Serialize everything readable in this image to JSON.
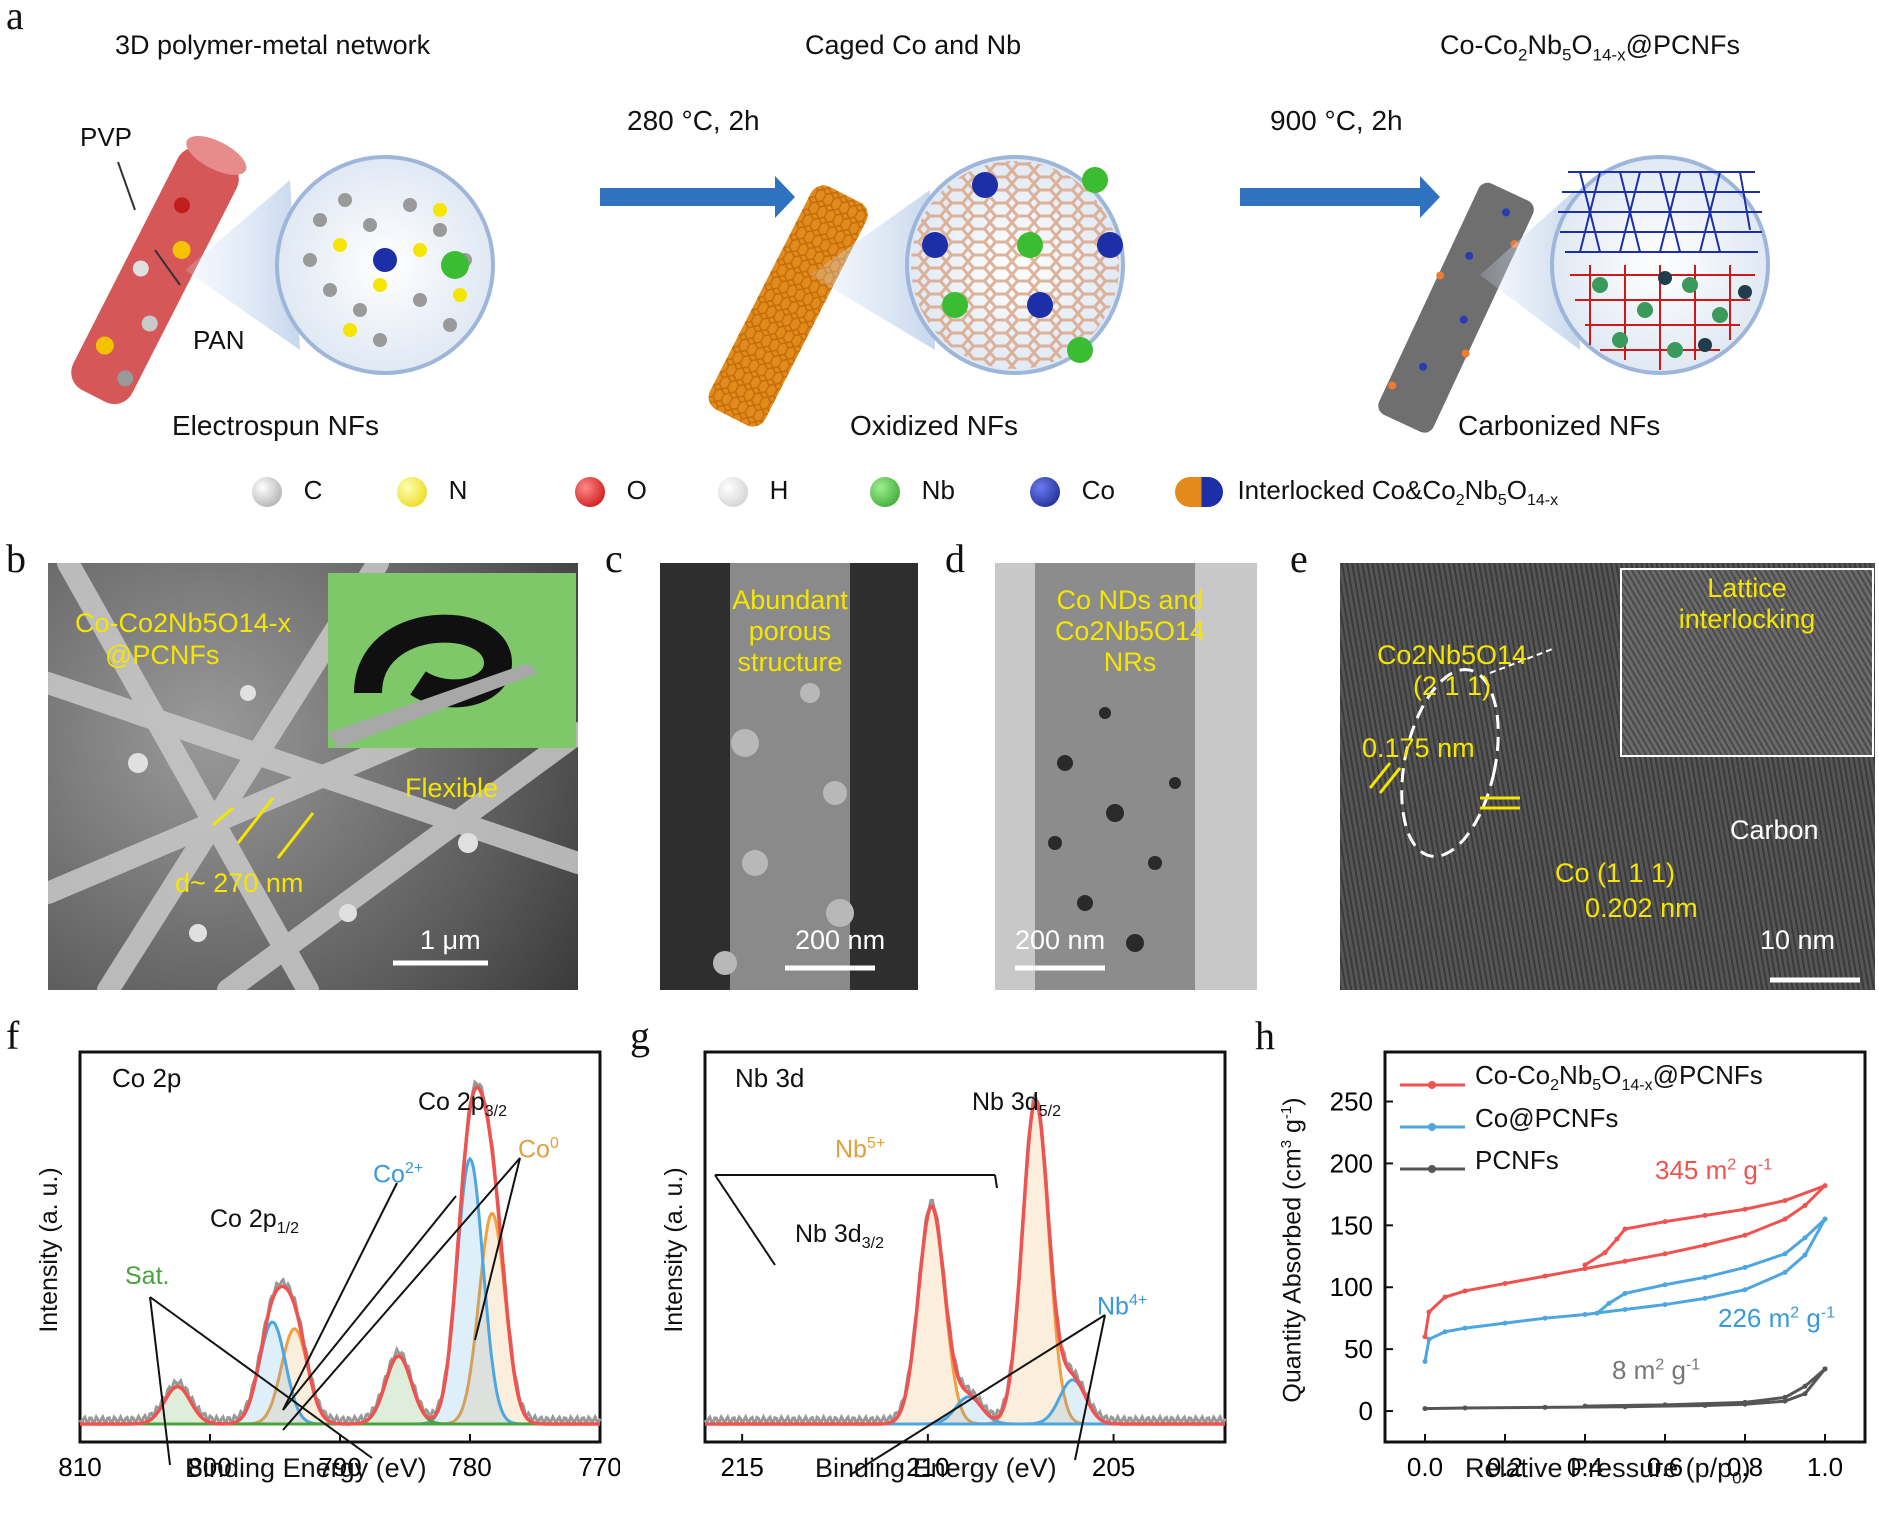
{
  "panel_labels": {
    "a": "a",
    "b": "b",
    "c": "c",
    "d": "d",
    "e": "e",
    "f": "f",
    "g": "g",
    "h": "h"
  },
  "panel_a": {
    "title1": "3D polymer-metal network",
    "title2": "Caged Co and Nb",
    "title3_main": "Co-Co",
    "title3_sub1": "2",
    "title3_mid": "Nb",
    "title3_sub2": "5",
    "title3_o": "O",
    "title3_sub3": "14-x",
    "title3_end": "@PCNFs",
    "pvp": "PVP",
    "pan": "PAN",
    "step1": "280 °C, 2h",
    "step2": "900 °C, 2h",
    "cap1": "Electrospun NFs",
    "cap2": "Oxidized NFs",
    "cap3": "Carbonized NFs",
    "legend": [
      {
        "label": "C",
        "color": "#bdbdbd",
        "icon": "carbon-atom-icon"
      },
      {
        "label": "N",
        "color": "#f3e000",
        "icon": "nitrogen-atom-icon"
      },
      {
        "label": "O",
        "color": "#dd1111",
        "icon": "oxygen-atom-icon"
      },
      {
        "label": "H",
        "color": "#f2f2f2",
        "icon": "hydrogen-atom-icon"
      },
      {
        "label": "Nb",
        "color": "#3cbc32",
        "icon": "niobium-atom-icon"
      },
      {
        "label": "Co",
        "color": "#1c2ea8",
        "icon": "cobalt-atom-icon"
      }
    ],
    "legend_interlocked": "Interlocked Co&Co",
    "legend_interlocked_sub": [
      "2",
      "5",
      "14-x"
    ]
  },
  "panel_b": {
    "line1": "Co-Co2Nb5O14-x",
    "line2": "@PCNFs",
    "flexible": "Flexible",
    "diam": "d~ 270 nm",
    "scale": "1 μm"
  },
  "panel_c": {
    "text": [
      "Abundant",
      "porous",
      "structure"
    ],
    "scale": "200 nm"
  },
  "panel_d": {
    "text": [
      "Co NDs and",
      "Co2Nb5O14",
      "NRs"
    ],
    "scale": "200 nm"
  },
  "panel_e": {
    "phase": "Co2Nb5O14",
    "plane": "(2 1 1)",
    "d1": "0.175 nm",
    "inset": [
      "Lattice",
      "interlocking"
    ],
    "carbon": "Carbon",
    "co_plane": "Co (1 1 1)",
    "d2": "0.202 nm",
    "scale": "10 nm"
  },
  "chart_data": [
    {
      "panel": "f",
      "type": "line",
      "title": "Co 2p",
      "xlabel": "Binding Energy (eV)",
      "ylabel": "Intensity (a. u.)",
      "xlim": [
        810,
        770
      ],
      "xticks": [
        810,
        800,
        790,
        780,
        770
      ],
      "annotations": [
        "Co 2p3/2",
        "Co 2p1/2",
        "Co2+",
        "Co0",
        "Sat."
      ],
      "peaks": [
        {
          "name": "Co0",
          "center": 778.3,
          "height": 0.62
        },
        {
          "name": "Co2+",
          "center": 780.0,
          "height": 0.78
        },
        {
          "name": "Co0",
          "center": 793.5,
          "height": 0.28
        },
        {
          "name": "Co2+",
          "center": 795.2,
          "height": 0.3
        },
        {
          "name": "Sat.",
          "center": 785.5,
          "height": 0.2
        },
        {
          "name": "Sat.",
          "center": 802.5,
          "height": 0.11
        }
      ]
    },
    {
      "panel": "g",
      "type": "line",
      "title": "Nb 3d",
      "xlabel": "Binding Energy (eV)",
      "ylabel": "Intensity (a. u.)",
      "xlim": [
        216,
        202
      ],
      "xticks": [
        215,
        210,
        205
      ],
      "annotations": [
        "Nb 3d5/2",
        "Nb 3d3/2",
        "Nb5+",
        "Nb4+"
      ],
      "peaks": [
        {
          "name": "Nb5+",
          "center": 207.1,
          "height": 0.95
        },
        {
          "name": "Nb5+",
          "center": 209.9,
          "height": 0.64
        },
        {
          "name": "Nb4+",
          "center": 206.1,
          "height": 0.13
        },
        {
          "name": "Nb4+",
          "center": 208.9,
          "height": 0.08
        }
      ]
    },
    {
      "panel": "h",
      "type": "line",
      "xlabel": "Relative Pressure (p/p0)",
      "ylabel": "Quantity Absorbed (cm3 g-1)",
      "xlim": [
        -0.1,
        1.1
      ],
      "ylim": [
        -25,
        290
      ],
      "xticks": [
        0.0,
        0.2,
        0.4,
        0.6,
        0.8,
        1.0
      ],
      "yticks": [
        0,
        50,
        100,
        150,
        200,
        250
      ],
      "series": [
        {
          "name": "Co-Co2Nb5O14-x@PCNFs",
          "color": "#ef5350",
          "area": "345 m2 g-1",
          "adsorption": [
            [
              0.0,
              60
            ],
            [
              0.01,
              80
            ],
            [
              0.05,
              92
            ],
            [
              0.1,
              97
            ],
            [
              0.2,
              103
            ],
            [
              0.3,
              109
            ],
            [
              0.4,
              115
            ],
            [
              0.5,
              121
            ],
            [
              0.6,
              127
            ],
            [
              0.7,
              134
            ],
            [
              0.8,
              142
            ],
            [
              0.9,
              155
            ],
            [
              0.95,
              166
            ],
            [
              1.0,
              182
            ]
          ],
          "desorption": [
            [
              1.0,
              182
            ],
            [
              0.9,
              170
            ],
            [
              0.8,
              163
            ],
            [
              0.7,
              158
            ],
            [
              0.6,
              153
            ],
            [
              0.5,
              147
            ],
            [
              0.48,
              139
            ],
            [
              0.45,
              128
            ],
            [
              0.4,
              118
            ]
          ]
        },
        {
          "name": "Co@PCNFs",
          "color": "#4da6e0",
          "area": "226 m2 g-1",
          "adsorption": [
            [
              0.0,
              40
            ],
            [
              0.01,
              58
            ],
            [
              0.05,
              64
            ],
            [
              0.1,
              67
            ],
            [
              0.2,
              71
            ],
            [
              0.3,
              75
            ],
            [
              0.4,
              78
            ],
            [
              0.5,
              82
            ],
            [
              0.6,
              86
            ],
            [
              0.7,
              91
            ],
            [
              0.8,
              98
            ],
            [
              0.9,
              112
            ],
            [
              0.95,
              126
            ],
            [
              1.0,
              155
            ]
          ],
          "desorption": [
            [
              1.0,
              155
            ],
            [
              0.95,
              140
            ],
            [
              0.9,
              127
            ],
            [
              0.8,
              116
            ],
            [
              0.7,
              108
            ],
            [
              0.6,
              102
            ],
            [
              0.5,
              95
            ],
            [
              0.46,
              87
            ],
            [
              0.43,
              79
            ]
          ]
        },
        {
          "name": "PCNFs",
          "color": "#555555",
          "area": "8 m2 g-1",
          "adsorption": [
            [
              0.0,
              2
            ],
            [
              0.1,
              2.5
            ],
            [
              0.3,
              3
            ],
            [
              0.5,
              3.5
            ],
            [
              0.7,
              4.5
            ],
            [
              0.8,
              5.5
            ],
            [
              0.9,
              8
            ],
            [
              0.95,
              14
            ],
            [
              1.0,
              34
            ]
          ],
          "desorption": [
            [
              1.0,
              34
            ],
            [
              0.95,
              20
            ],
            [
              0.9,
              11
            ],
            [
              0.8,
              7
            ],
            [
              0.6,
              5
            ],
            [
              0.4,
              4
            ]
          ]
        }
      ]
    }
  ]
}
